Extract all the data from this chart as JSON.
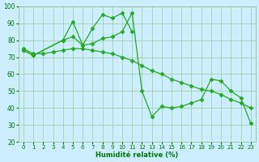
{
  "xlabel": "Humidité relative (%)",
  "background_color": "#cceeff",
  "grid_color": "#99cc99",
  "line_color": "#22aa22",
  "marker_color": "#22aa22",
  "series1_x": [
    0,
    1,
    4,
    5,
    6,
    7,
    8,
    9,
    10,
    11
  ],
  "series1_y": [
    74,
    71,
    80,
    91,
    77,
    87,
    95,
    93,
    96,
    85
  ],
  "series2_x": [
    0,
    1,
    4,
    5,
    6,
    7,
    8,
    9,
    10,
    11,
    12,
    13,
    14,
    15,
    16,
    17,
    18,
    19,
    20,
    21,
    22,
    23
  ],
  "series2_y": [
    74,
    71,
    80,
    82,
    77,
    78,
    81,
    82,
    85,
    96,
    50,
    35,
    41,
    40,
    41,
    43,
    45,
    57,
    56,
    50,
    46,
    31
  ],
  "series3_x": [
    0,
    1,
    2,
    3,
    4,
    5,
    6,
    7,
    8,
    9,
    10,
    11,
    12,
    13,
    14,
    15,
    16,
    17,
    18,
    19,
    20,
    21,
    22,
    23
  ],
  "series3_y": [
    75,
    72,
    72,
    73,
    74,
    75,
    75,
    74,
    73,
    72,
    70,
    68,
    65,
    62,
    60,
    57,
    55,
    53,
    51,
    50,
    48,
    45,
    43,
    40
  ],
  "ylim": [
    20,
    100
  ],
  "xlim": [
    -0.5,
    23.5
  ],
  "yticks": [
    20,
    30,
    40,
    50,
    60,
    70,
    80,
    90,
    100
  ],
  "xticks": [
    0,
    1,
    2,
    3,
    4,
    5,
    6,
    7,
    8,
    9,
    10,
    11,
    12,
    13,
    14,
    15,
    16,
    17,
    18,
    19,
    20,
    21,
    22,
    23
  ]
}
